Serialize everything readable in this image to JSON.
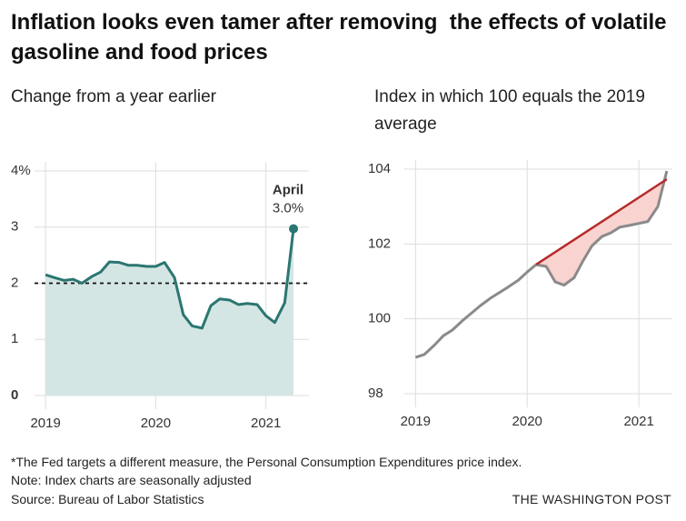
{
  "title": "Inflation looks even tamer after removing  the effects of volatile gasoline and food prices",
  "chart_data": [
    {
      "type": "area",
      "subtitle": "Change from a year earlier",
      "x": [
        2019,
        2019.08,
        2019.17,
        2019.25,
        2019.33,
        2019.42,
        2019.5,
        2019.58,
        2019.67,
        2019.75,
        2019.83,
        2019.92,
        2020,
        2020.08,
        2020.17,
        2020.25,
        2020.33,
        2020.42,
        2020.5,
        2020.58,
        2020.67,
        2020.75,
        2020.83,
        2020.92,
        2021,
        2021.08,
        2021.17,
        2021.25
      ],
      "values": [
        2.15,
        2.1,
        2.05,
        2.07,
        2.0,
        2.12,
        2.2,
        2.38,
        2.37,
        2.32,
        2.32,
        2.3,
        2.3,
        2.37,
        2.1,
        1.44,
        1.24,
        1.2,
        1.6,
        1.72,
        1.7,
        1.62,
        1.64,
        1.62,
        1.42,
        1.3,
        1.65,
        2.97
      ],
      "value_labels": [
        null,
        null,
        null,
        null,
        null,
        null,
        null,
        null,
        null,
        null,
        null,
        null,
        null,
        null,
        null,
        null,
        null,
        null,
        null,
        null,
        null,
        null,
        null,
        null,
        null,
        null,
        null,
        "3.0%"
      ],
      "annotation": "April",
      "color": "#2b7671",
      "fill_color": "#d4e6e4",
      "reference_line": 2,
      "xlim": [
        2018.9,
        2021.39
      ],
      "xticks": [
        2019,
        2020,
        2021
      ],
      "ylim": [
        0,
        4
      ],
      "yticks": [
        {
          "value": 4,
          "label": "4%"
        },
        3,
        2,
        1,
        0
      ],
      "grid": true
    },
    {
      "type": "line",
      "subtitle": "Index in which 100 equals the 2019 average",
      "x": [
        2019,
        2019.08,
        2019.17,
        2019.25,
        2019.33,
        2019.42,
        2019.5,
        2019.58,
        2019.67,
        2019.75,
        2019.83,
        2019.92,
        2020,
        2020.08,
        2020.17,
        2020.25,
        2020.33,
        2020.42,
        2020.5,
        2020.58,
        2020.67,
        2020.75,
        2020.83,
        2020.92,
        2021,
        2021.08,
        2021.17,
        2021.25
      ],
      "values": [
        98.97,
        99.05,
        99.3,
        99.55,
        99.7,
        99.95,
        100.15,
        100.35,
        100.55,
        100.7,
        100.85,
        101.03,
        101.25,
        101.45,
        101.4,
        100.99,
        100.9,
        101.1,
        101.55,
        101.95,
        102.2,
        102.3,
        102.45,
        102.5,
        102.55,
        102.6,
        103.0,
        103.95
      ],
      "color": "#8a8a8a",
      "trend": {
        "x": [
          2020.08,
          2021.25
        ],
        "values": [
          101.45,
          103.73
        ],
        "color": "#b62a2a"
      },
      "gap_fill_color": "#f9d3d0",
      "xlim": [
        2018.9,
        2021.3
      ],
      "xticks": [
        2019,
        2020,
        2021
      ],
      "ylim": [
        98,
        104
      ],
      "yticks": [
        104,
        102,
        100,
        98
      ],
      "grid": true
    }
  ],
  "notes": [
    "*The Fed targets a different measure, the Personal Consumption Expenditures price index.",
    "Note: Index charts are seasonally adjusted",
    "Source: Bureau of Labor Statistics"
  ],
  "credit": "THE WASHINGTON POST"
}
